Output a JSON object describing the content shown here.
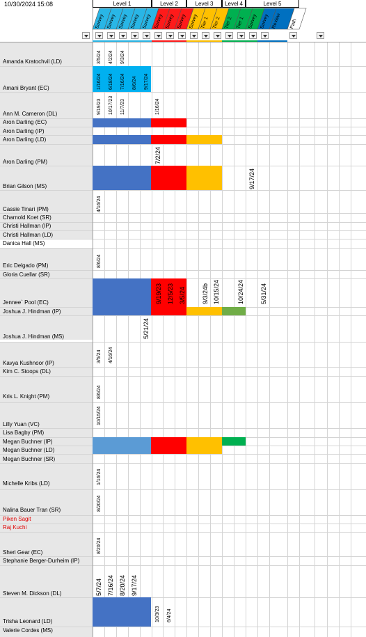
{
  "timestamp": "10/30/2024 15:08",
  "levels": [
    {
      "label": "Level 1"
    },
    {
      "label": "Level 2"
    },
    {
      "label": "Level 3"
    },
    {
      "label": "Level 4"
    },
    {
      "label": "Level 5"
    }
  ],
  "columns": [
    {
      "label": "Survey",
      "color": "#29b6e6"
    },
    {
      "label": "Survey",
      "color": "#29b6e6"
    },
    {
      "label": "Survey",
      "color": "#29b6e6"
    },
    {
      "label": "Survey",
      "color": "#29b6e6"
    },
    {
      "label": "Survey",
      "color": "#29b6e6"
    },
    {
      "label": "Survey",
      "color": "#ff1a1a"
    },
    {
      "label": "Survey",
      "color": "#ff1a1a"
    },
    {
      "label": "Survey",
      "color": "#ff1a1a"
    },
    {
      "label": "Survey",
      "color": "#ffc000"
    },
    {
      "label": "Tier 1",
      "color": "#ffc000"
    },
    {
      "label": "Tier 2",
      "color": "#ffc000"
    },
    {
      "label": "Tier 2",
      "color": "#00b050"
    },
    {
      "label": "Tier 1",
      "color": "#00b050"
    },
    {
      "label": "Survey",
      "color": "#00b050"
    },
    {
      "label": "Survey",
      "color": "#0070c0"
    },
    {
      "label": "Review",
      "color": "#0070c0"
    },
    {
      "label": "Path",
      "color": "#ffffff"
    }
  ],
  "names": [
    {
      "text": "Amanda Kratochvil (LD)",
      "color": "#000000"
    },
    {
      "text": "Amani Bryant (EC)",
      "color": "#000000"
    },
    {
      "text": "Ann M. Cameron (DL)",
      "color": "#000000"
    },
    {
      "text": "Aron Darling (EC)",
      "color": "#000000"
    },
    {
      "text": "Aron Darling (IP)",
      "color": "#000000"
    },
    {
      "text": "Aron Darling (LD)",
      "color": "#000000"
    },
    {
      "text": "Aron Darling (PM)",
      "color": "#000000"
    },
    {
      "text": "Brian Gilson (MS)",
      "color": "#000000"
    },
    {
      "text": "Cassie Tinari (PM)",
      "color": "#000000"
    },
    {
      "text": "Charnold Koet (SR)",
      "color": "#000000"
    },
    {
      "text": "Christi Hallman (IP)",
      "color": "#000000"
    },
    {
      "text": "Christi Hallman (LD)",
      "color": "#000000"
    },
    {
      "text": "Danica Hall (MS)",
      "color": "#000000"
    },
    {
      "text": "Eric Delgado (PM)",
      "color": "#000000"
    },
    {
      "text": "Gloria Cuellar (SR)",
      "color": "#000000"
    },
    {
      "text": "Jennee` Pool (EC)",
      "color": "#000000"
    },
    {
      "text": "Joshua J. Hindman (IP)",
      "color": "#000000"
    },
    {
      "text": "Joshua J. Hindman (MS)",
      "color": "#000000"
    },
    {
      "text": "Kavya Kushnoor (IP)",
      "color": "#000000"
    },
    {
      "text": "Kim C. Stoops (DL)",
      "color": "#000000"
    },
    {
      "text": "Kris L. Knight (PM)",
      "color": "#000000"
    },
    {
      "text": "Lilly Yuan (VC)",
      "color": "#000000"
    },
    {
      "text": "Lisa Bagby (PM)",
      "color": "#000000"
    },
    {
      "text": "Megan Buchner (IP)",
      "color": "#000000"
    },
    {
      "text": "Megan Buchner (LD)",
      "color": "#000000"
    },
    {
      "text": "Megan Buchner (SR)",
      "color": "#000000"
    },
    {
      "text": "Michelle Kribs (LD)",
      "color": "#000000"
    },
    {
      "text": "Nalina Bauer Tran (SR)",
      "color": "#000000"
    },
    {
      "text": "Piken Sagit",
      "color": "#e00000"
    },
    {
      "text": "Raj Kuchi",
      "color": "#e00000"
    },
    {
      "text": "Sheri Gear (EC)",
      "color": "#000000"
    },
    {
      "text": "Stephanie Berger-Durheim (IP)",
      "color": "#000000"
    },
    {
      "text": "Steven M. Dickson (DL)",
      "color": "#000000"
    },
    {
      "text": "Trisha Leonard (LD)",
      "color": "#000000"
    },
    {
      "text": "Valerie Cordes (MS)",
      "color": "#000000"
    }
  ],
  "dates": [
    {
      "text": "3/5/24"
    },
    {
      "text": "4/2/24"
    },
    {
      "text": "9/3/24"
    },
    {
      "text": "1/16/24"
    },
    {
      "text": "6/18/24"
    },
    {
      "text": "7/16/24"
    },
    {
      "text": "8/6/24"
    },
    {
      "text": "9/17/24"
    },
    {
      "text": "9/19/23"
    },
    {
      "text": "10/17/23"
    },
    {
      "text": "11/7/23"
    },
    {
      "text": "1/16/24"
    },
    {
      "text": "7/2/24"
    },
    {
      "text": "9/17/24"
    },
    {
      "text": "4/16/24"
    },
    {
      "text": "8/6/24"
    },
    {
      "text": "9/19/23"
    },
    {
      "text": "12/5/23"
    },
    {
      "text": "3/5/24"
    },
    {
      "text": "9/3/24b"
    },
    {
      "text": "10/15/24"
    },
    {
      "text": "10/24/24"
    },
    {
      "text": "5/31/24"
    },
    {
      "text": "5/21/24"
    },
    {
      "text": "3/5/24"
    },
    {
      "text": "4/16/24"
    },
    {
      "text": "8/6/24"
    },
    {
      "text": "10/15/24"
    },
    {
      "text": "1/16/24"
    },
    {
      "text": "8/20/24"
    },
    {
      "text": "8/20/24"
    },
    {
      "text": "5/7/24"
    },
    {
      "text": "7/16/24"
    },
    {
      "text": "8/20/24"
    },
    {
      "text": "9/17/24"
    },
    {
      "text": "10/3/23"
    },
    {
      "text": "6/4/24"
    }
  ],
  "colors": {
    "level1_blue": "#4472c4",
    "level1_light": "#5b9bd5",
    "cyan": "#00b0f0",
    "red": "#ff0000",
    "amber": "#ffc000",
    "green_olive": "#70ad47",
    "green": "#00b050",
    "gray": "#e7e7e7",
    "grid": "#d4d4d4"
  }
}
